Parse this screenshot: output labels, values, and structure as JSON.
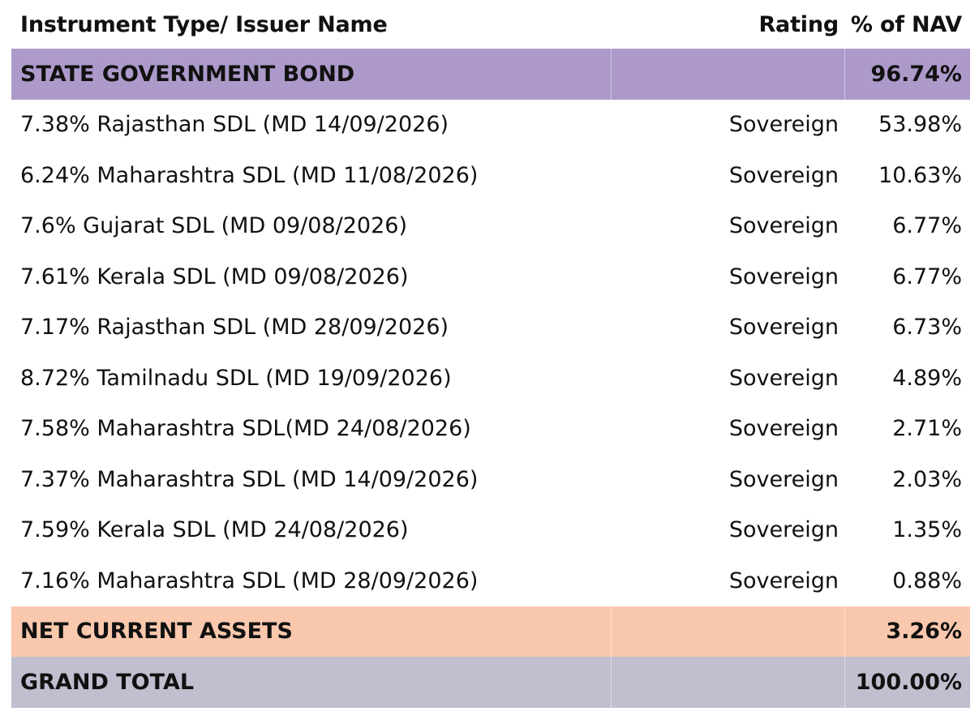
{
  "headers": {
    "name": "Instrument Type/ Issuer Name",
    "rating": "Rating",
    "nav": "% of NAV"
  },
  "colors": {
    "state_government_bond": "#ad9acb",
    "net_current_assets": "#f9c8ad",
    "grand_total": "#bfbfcf"
  },
  "sections": {
    "state": {
      "label": "STATE GOVERNMENT BOND",
      "nav": "96.74%"
    },
    "nca": {
      "label": "NET CURRENT ASSETS",
      "nav": "3.26%"
    },
    "total": {
      "label": "GRAND TOTAL",
      "nav": "100.00%"
    }
  },
  "rows": [
    {
      "name": "7.38% Rajasthan SDL (MD 14/09/2026)",
      "rating": "Sovereign",
      "nav": "53.98%"
    },
    {
      "name": "6.24% Maharashtra SDL (MD 11/08/2026)",
      "rating": "Sovereign",
      "nav": "10.63%"
    },
    {
      "name": "7.6% Gujarat SDL (MD 09/08/2026)",
      "rating": "Sovereign",
      "nav": "6.77%"
    },
    {
      "name": "7.61% Kerala SDL (MD 09/08/2026)",
      "rating": "Sovereign",
      "nav": "6.77%"
    },
    {
      "name": "7.17% Rajasthan SDL (MD 28/09/2026)",
      "rating": "Sovereign",
      "nav": "6.73%"
    },
    {
      "name": "8.72% Tamilnadu SDL (MD 19/09/2026)",
      "rating": "Sovereign",
      "nav": "4.89%"
    },
    {
      "name": "7.58% Maharashtra SDL(MD 24/08/2026)",
      "rating": "Sovereign",
      "nav": "2.71%"
    },
    {
      "name": "7.37% Maharashtra SDL (MD 14/09/2026)",
      "rating": "Sovereign",
      "nav": "2.03%"
    },
    {
      "name": "7.59% Kerala SDL (MD 24/08/2026)",
      "rating": "Sovereign",
      "nav": "1.35%"
    },
    {
      "name": "7.16% Maharashtra SDL (MD 28/09/2026)",
      "rating": "Sovereign",
      "nav": "0.88%"
    }
  ],
  "chart_data": {
    "type": "table",
    "columns": [
      "Instrument Type/ Issuer Name",
      "Rating",
      "% of NAV"
    ],
    "rows": [
      [
        "STATE GOVERNMENT BOND",
        "",
        "96.74%"
      ],
      [
        "7.38% Rajasthan SDL (MD 14/09/2026)",
        "Sovereign",
        "53.98%"
      ],
      [
        "6.24% Maharashtra SDL (MD 11/08/2026)",
        "Sovereign",
        "10.63%"
      ],
      [
        "7.6% Gujarat SDL (MD 09/08/2026)",
        "Sovereign",
        "6.77%"
      ],
      [
        "7.61% Kerala SDL (MD 09/08/2026)",
        "Sovereign",
        "6.77%"
      ],
      [
        "7.17% Rajasthan SDL (MD 28/09/2026)",
        "Sovereign",
        "6.73%"
      ],
      [
        "8.72% Tamilnadu SDL (MD 19/09/2026)",
        "Sovereign",
        "4.89%"
      ],
      [
        "7.58% Maharashtra SDL(MD 24/08/2026)",
        "Sovereign",
        "2.71%"
      ],
      [
        "7.37% Maharashtra SDL (MD 14/09/2026)",
        "Sovereign",
        "2.03%"
      ],
      [
        "7.59% Kerala SDL (MD 24/08/2026)",
        "Sovereign",
        "1.35%"
      ],
      [
        "7.16% Maharashtra SDL (MD 28/09/2026)",
        "Sovereign",
        "0.88%"
      ],
      [
        "NET CURRENT ASSETS",
        "",
        "3.26%"
      ],
      [
        "GRAND TOTAL",
        "",
        "100.00%"
      ]
    ]
  }
}
